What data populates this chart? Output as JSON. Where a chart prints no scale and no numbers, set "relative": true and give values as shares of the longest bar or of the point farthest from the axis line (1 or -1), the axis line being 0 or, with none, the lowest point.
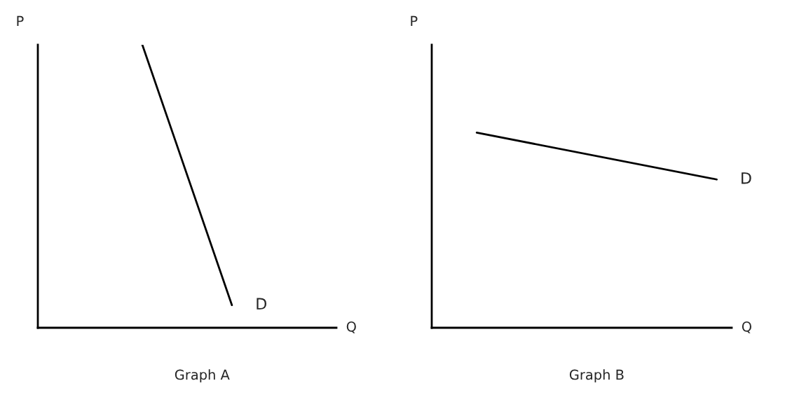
{
  "chart_data": [
    {
      "type": "line",
      "title": "Graph A",
      "xlabel": "Q",
      "ylabel": "P",
      "relative": true,
      "categories": [
        null,
        null,
        null,
        null,
        null,
        null,
        null,
        null,
        null,
        null
      ],
      "series": [
        {
          "color": "#000000",
          "values": [
            null,
            null,
            null,
            1,
            null,
            null,
            0.08,
            null,
            null,
            null
          ]
        }
      ],
      "annotations": [
        "D"
      ],
      "marker": "none",
      "line_style": "solid"
    },
    {
      "type": "line",
      "title": "Graph B",
      "xlabel": "Q",
      "ylabel": "P",
      "relative": true,
      "categories": [
        null,
        null,
        null,
        null,
        null,
        null,
        null,
        null,
        null,
        null
      ],
      "series": [
        {
          "color": "#000000",
          "values": [
            null,
            1,
            null,
            null,
            null,
            null,
            null,
            null,
            null,
            0.76
          ]
        }
      ],
      "annotations": [
        "D"
      ],
      "marker": "none",
      "line_style": "solid"
    }
  ]
}
